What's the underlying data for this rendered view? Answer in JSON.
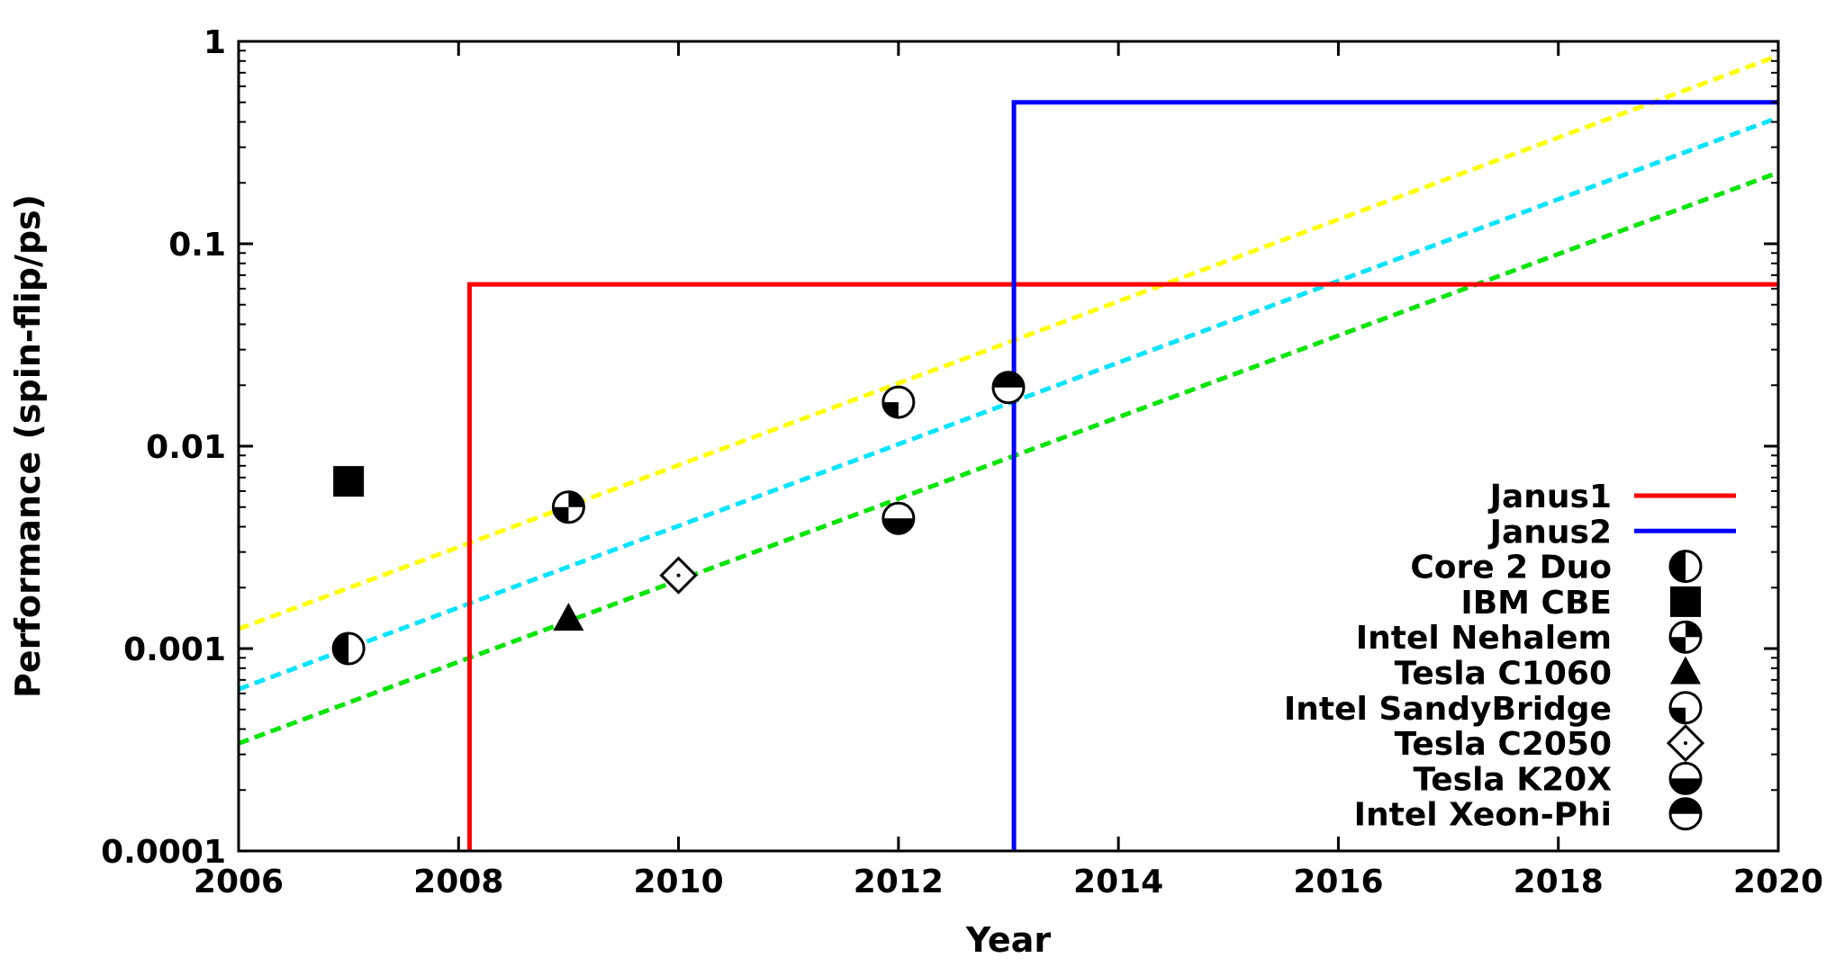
{
  "chart_data": {
    "type": "scatter",
    "title": "",
    "xlabel": "Year",
    "ylabel": "Performance (spin-flip/ps)",
    "xlim": [
      2006,
      2020
    ],
    "ylim": [
      0.0001,
      1
    ],
    "yscale": "log",
    "grid": false,
    "legend_position": "bottom-right",
    "x_ticks": [
      "2006",
      "2008",
      "2010",
      "2012",
      "2014",
      "2016",
      "2018",
      "2020"
    ],
    "y_ticks": [
      "0.0001",
      "0.001",
      "0.01",
      "0.1",
      "1"
    ],
    "step_series": [
      {
        "name": "Janus1",
        "color": "#ff0000",
        "x_start": 2008.1,
        "y": 0.063
      },
      {
        "name": "Janus2",
        "color": "#0000ff",
        "x_start": 2013.05,
        "y": 0.5
      }
    ],
    "series": [
      {
        "name": "Core 2 Duo",
        "marker": "circle-left-half",
        "points": [
          {
            "x": 2007,
            "y": 0.001
          }
        ]
      },
      {
        "name": "IBM CBE",
        "marker": "square-filled",
        "points": [
          {
            "x": 2007,
            "y": 0.0067
          }
        ]
      },
      {
        "name": "Intel Nehalem",
        "marker": "circle-quarters",
        "points": [
          {
            "x": 2009,
            "y": 0.005
          }
        ]
      },
      {
        "name": "Tesla C1060",
        "marker": "triangle-filled",
        "points": [
          {
            "x": 2009,
            "y": 0.0014
          }
        ]
      },
      {
        "name": "Intel SandyBridge",
        "marker": "circle-bottom-left-quarter",
        "points": [
          {
            "x": 2012,
            "y": 0.0165
          }
        ]
      },
      {
        "name": "Tesla C2050",
        "marker": "diamond-dot",
        "points": [
          {
            "x": 2010,
            "y": 0.0023
          }
        ]
      },
      {
        "name": "Tesla K20X",
        "marker": "circle-bottom-half",
        "points": [
          {
            "x": 2012,
            "y": 0.0044
          }
        ]
      },
      {
        "name": "Intel Xeon-Phi",
        "marker": "circle-top-half",
        "points": [
          {
            "x": 2013,
            "y": 0.0195
          }
        ]
      }
    ],
    "trend_lines": [
      {
        "color": "#ffff00",
        "x": [
          2006,
          2020
        ],
        "y": [
          0.00125,
          0.85
        ]
      },
      {
        "color": "#00e5ff",
        "x": [
          2006,
          2020
        ],
        "y": [
          0.00063,
          0.42
        ]
      },
      {
        "color": "#00e600",
        "x": [
          2006,
          2020
        ],
        "y": [
          0.00034,
          0.225
        ]
      }
    ]
  }
}
